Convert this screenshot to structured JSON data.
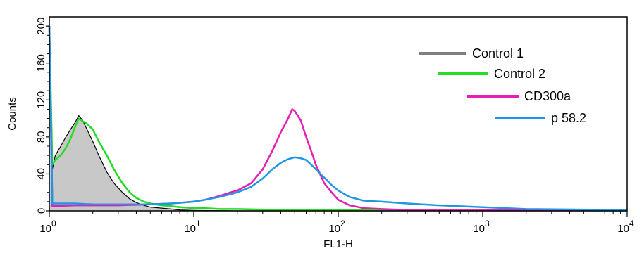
{
  "chart_data": {
    "type": "line",
    "title": "",
    "xlabel": "FL1-H",
    "ylabel": "Counts",
    "x_scale": "log",
    "xlim": [
      1,
      10000
    ],
    "ylim": [
      0,
      210
    ],
    "x_ticks": [
      1,
      10,
      100,
      1000,
      10000
    ],
    "x_tick_labels": [
      {
        "base": "10",
        "exp": "0"
      },
      {
        "base": "10",
        "exp": "1"
      },
      {
        "base": "10",
        "exp": "2"
      },
      {
        "base": "10",
        "exp": "3"
      },
      {
        "base": "10",
        "exp": "4"
      }
    ],
    "y_ticks": [
      0,
      40,
      80,
      120,
      160,
      200
    ],
    "y_tick_labels": [
      "0",
      "40",
      "80",
      "120",
      "160",
      "200"
    ],
    "grid": false,
    "legend_position": "top-right",
    "series": [
      {
        "name": "Control 1",
        "color": "#7f7f7f",
        "fill": "#c8c8c8",
        "x": [
          1.0,
          1.05,
          1.1,
          1.2,
          1.3,
          1.4,
          1.5,
          1.6,
          1.7,
          1.8,
          2.0,
          2.2,
          2.5,
          2.8,
          3.2,
          3.6,
          4.0,
          4.5,
          5.0,
          6.0,
          7.0,
          8.0,
          10,
          14,
          20,
          40,
          100,
          1000,
          10000
        ],
        "y": [
          200,
          45,
          60,
          70,
          80,
          88,
          95,
          103,
          98,
          90,
          75,
          60,
          42,
          30,
          20,
          13,
          9,
          6,
          4,
          3,
          2,
          1,
          0.5,
          0.3,
          0,
          0,
          0,
          0,
          0
        ]
      },
      {
        "name": "Control 2",
        "color": "#22dd22",
        "x": [
          1.0,
          1.05,
          1.1,
          1.2,
          1.3,
          1.4,
          1.5,
          1.6,
          1.7,
          1.8,
          2.0,
          2.2,
          2.5,
          2.8,
          3.2,
          3.6,
          4.0,
          4.5,
          5.0,
          6.0,
          7.0,
          8.0,
          10,
          12,
          15,
          20,
          40,
          100,
          1000,
          10000
        ],
        "y": [
          200,
          50,
          55,
          60,
          68,
          78,
          90,
          100,
          97,
          95,
          88,
          75,
          60,
          45,
          30,
          20,
          14,
          10,
          8,
          6,
          5,
          4,
          3,
          3,
          2,
          2,
          1,
          1,
          1,
          1
        ]
      },
      {
        "name": "CD300a",
        "color": "#e61eb4",
        "x": [
          1.0,
          1.05,
          1.5,
          2,
          3,
          5,
          7,
          10,
          12,
          15,
          18,
          20,
          25,
          30,
          35,
          40,
          45,
          48,
          50,
          55,
          60,
          65,
          70,
          80,
          90,
          100,
          120,
          150,
          200,
          300,
          500,
          1000,
          10000
        ],
        "y": [
          200,
          5,
          6,
          6,
          6,
          7,
          8,
          10,
          12,
          16,
          20,
          22,
          30,
          45,
          65,
          85,
          100,
          110,
          108,
          98,
          80,
          65,
          50,
          30,
          20,
          12,
          6,
          3,
          2,
          1,
          0.5,
          0.5,
          0.5
        ]
      },
      {
        "name": "p 58.2",
        "color": "#1e96e6",
        "x": [
          1.0,
          1.05,
          1.5,
          2,
          3,
          5,
          7,
          10,
          12,
          15,
          18,
          20,
          25,
          30,
          35,
          40,
          45,
          50,
          55,
          60,
          65,
          70,
          80,
          90,
          100,
          120,
          150,
          200,
          300,
          500,
          700,
          1000,
          2000,
          10000
        ],
        "y": [
          200,
          8,
          8,
          7,
          7,
          7,
          8,
          10,
          12,
          15,
          18,
          20,
          26,
          35,
          45,
          52,
          56,
          58,
          57,
          55,
          50,
          45,
          36,
          28,
          22,
          15,
          11,
          10,
          8,
          6,
          5,
          4,
          2,
          1
        ]
      }
    ]
  }
}
